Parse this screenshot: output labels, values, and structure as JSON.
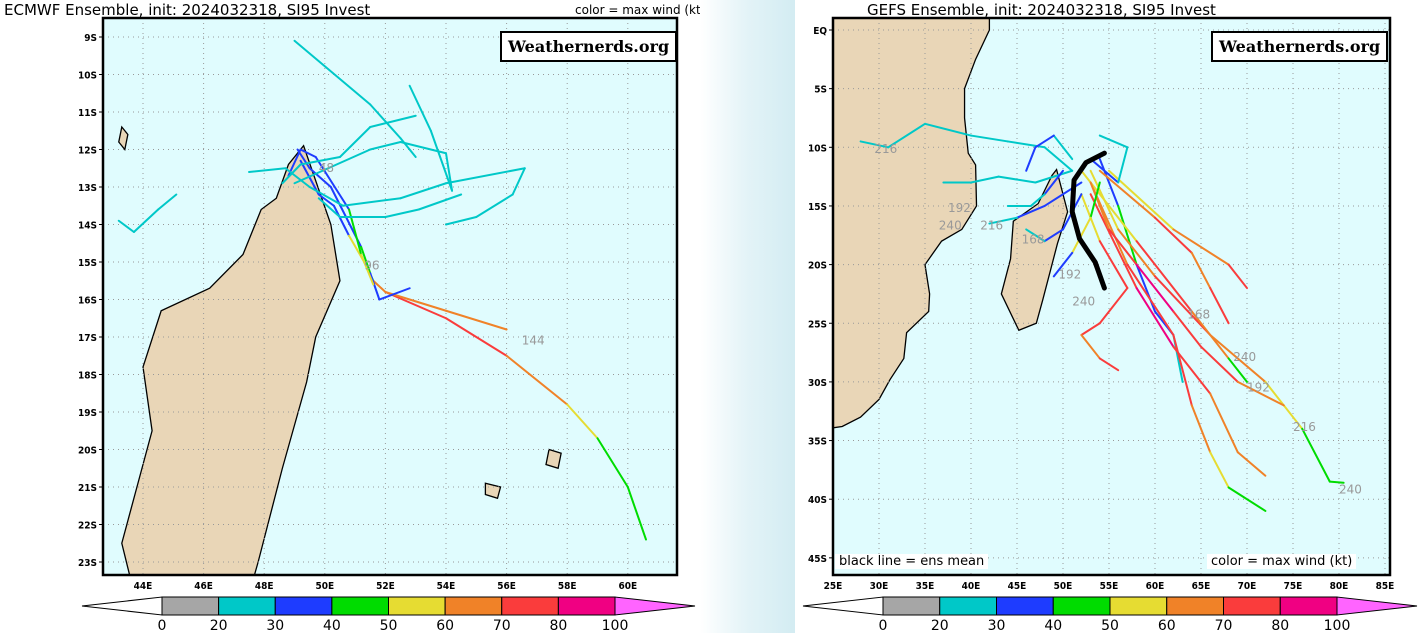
{
  "left": {
    "title": "ECMWF Ensemble, init: 2024032318, SI95 Invest",
    "legend_note": "color = max wind (kt)",
    "watermark": "Weathernerds.org",
    "lat_labels": [
      "9S",
      "10S",
      "11S",
      "12S",
      "13S",
      "14S",
      "15S",
      "16S",
      "17S",
      "18S",
      "19S",
      "20S",
      "21S",
      "22S",
      "23S"
    ],
    "lon_labels": [
      "44E",
      "46E",
      "48E",
      "50E",
      "52E",
      "54E",
      "56E",
      "58E",
      "60E"
    ],
    "track_labels": [
      {
        "text": "144",
        "lon": 56.5,
        "lat": -17.2
      },
      {
        "text": "96",
        "lon": 51.3,
        "lat": -15.2
      },
      {
        "text": "48",
        "lon": 49.8,
        "lat": -12.6
      }
    ],
    "tracks": [
      [
        [
          49.2,
          -12.3,
          30
        ],
        [
          49.8,
          -13.2,
          30
        ],
        [
          50.3,
          -13.5,
          30
        ],
        [
          50.8,
          -14.3,
          30
        ],
        [
          51.3,
          -15.0,
          50
        ],
        [
          51.6,
          -15.5,
          40
        ],
        [
          52,
          -15.8,
          60
        ],
        [
          54,
          -16.5,
          70
        ],
        [
          56,
          -17.5,
          70
        ],
        [
          58,
          -18.8,
          60
        ],
        [
          59,
          -19.7,
          50
        ],
        [
          60,
          -21.0,
          40
        ],
        [
          60.6,
          -22.4,
          40
        ]
      ],
      [
        [
          52,
          -15.8,
          60
        ],
        [
          54,
          -16.3,
          60
        ],
        [
          56,
          -16.8,
          60
        ]
      ],
      [
        [
          49.1,
          -12.0,
          30
        ],
        [
          49.5,
          -12.5,
          30
        ],
        [
          50.2,
          -13,
          30
        ],
        [
          51.2,
          -14.6,
          30
        ],
        [
          51.5,
          -15.3,
          40
        ],
        [
          51.8,
          -16.0,
          30
        ],
        [
          52.8,
          -15.7,
          30
        ]
      ],
      [
        [
          48.8,
          -12.7,
          30
        ],
        [
          49.2,
          -12.0,
          30
        ],
        [
          49.7,
          -12.2,
          30
        ],
        [
          50.8,
          -13.6,
          30
        ],
        [
          51.2,
          -14.8,
          40
        ],
        [
          51.6,
          -15.6,
          50
        ]
      ],
      [
        [
          49,
          -9.1,
          20
        ],
        [
          51.5,
          -10.8,
          20
        ],
        [
          52.5,
          -11.7,
          20
        ],
        [
          53,
          -12.2,
          20
        ]
      ],
      [
        [
          47.5,
          -12.6,
          20
        ],
        [
          48.7,
          -12.5,
          20
        ],
        [
          49.5,
          -13.0,
          20
        ],
        [
          50.6,
          -13.5,
          20
        ],
        [
          52.5,
          -13.3,
          20
        ],
        [
          54,
          -12.9,
          20
        ],
        [
          56.6,
          -12.5,
          20
        ],
        [
          56.2,
          -13.2,
          20
        ],
        [
          55.0,
          -13.8,
          20
        ],
        [
          54,
          -14.0,
          20
        ]
      ],
      [
        [
          49.0,
          -12.9,
          20
        ],
        [
          51.5,
          -12.0,
          20
        ],
        [
          52.5,
          -11.8,
          20
        ],
        [
          54,
          -12.1,
          20
        ],
        [
          54.2,
          -13.1,
          20
        ],
        [
          53.5,
          -11.5,
          20
        ],
        [
          52.8,
          -10.3,
          20
        ]
      ],
      [
        [
          48.6,
          -12.9,
          20
        ],
        [
          49.2,
          -12.4,
          20
        ],
        [
          50.5,
          -12.2,
          20
        ],
        [
          51.5,
          -11.4,
          20
        ],
        [
          53.0,
          -11.1,
          20
        ]
      ],
      [
        [
          43.2,
          -13.9,
          20
        ],
        [
          43.7,
          -14.2,
          20
        ],
        [
          44.5,
          -13.6,
          20
        ],
        [
          45.1,
          -13.2,
          20
        ]
      ],
      [
        [
          49.8,
          -13.3,
          20
        ],
        [
          50.5,
          -13.8,
          20
        ],
        [
          52,
          -13.8,
          20
        ],
        [
          53.1,
          -13.6,
          20
        ],
        [
          54.5,
          -13.2,
          20
        ]
      ]
    ]
  },
  "right": {
    "title": "GEFS Ensemble, init: 2024032318, SI95 Invest",
    "watermark": "Weathernerds.org",
    "note_left": "black line = ens mean",
    "note_right": "color = max wind (kt)",
    "lat_labels": [
      "EQ",
      "5S",
      "10S",
      "15S",
      "20S",
      "25S",
      "30S",
      "35S",
      "40S",
      "45S"
    ],
    "lon_labels": [
      "25E",
      "30E",
      "35E",
      "40E",
      "45E",
      "50E",
      "55E",
      "60E",
      "65E",
      "70E",
      "75E",
      "80E",
      "85E"
    ],
    "track_labels": [
      {
        "text": "216",
        "lon": 29.5,
        "lat": -10.5
      },
      {
        "text": "192",
        "lon": 37.5,
        "lat": -15.5
      },
      {
        "text": "240",
        "lon": 36.5,
        "lat": -17
      },
      {
        "text": "216",
        "lon": 41,
        "lat": -17
      },
      {
        "text": "168",
        "lon": 45.5,
        "lat": -18.2
      },
      {
        "text": "192",
        "lon": 49.5,
        "lat": -21.2
      },
      {
        "text": "240",
        "lon": 51,
        "lat": -23.5
      },
      {
        "text": "168",
        "lon": 63.5,
        "lat": -24.6
      },
      {
        "text": "240",
        "lon": 68.5,
        "lat": -28.2
      },
      {
        "text": "192",
        "lon": 70,
        "lat": -30.8
      },
      {
        "text": "216",
        "lon": 75,
        "lat": -34.2
      },
      {
        "text": "240",
        "lon": 80,
        "lat": -39.5
      }
    ],
    "tracks": [
      [
        [
          54,
          -11,
          20
        ],
        [
          56,
          -15,
          30
        ],
        [
          58,
          -20,
          40
        ],
        [
          60,
          -24,
          30
        ],
        [
          62,
          -26,
          30
        ],
        [
          63,
          -30,
          20
        ]
      ],
      [
        [
          53,
          -12,
          30
        ],
        [
          56,
          -17,
          50
        ],
        [
          60,
          -21,
          60
        ],
        [
          66,
          -26,
          70
        ],
        [
          72,
          -30,
          60
        ],
        [
          76,
          -34,
          50
        ],
        [
          79,
          -38.5,
          40
        ],
        [
          80.5,
          -38.6,
          40
        ]
      ],
      [
        [
          53,
          -13,
          40
        ],
        [
          57,
          -20,
          60
        ],
        [
          62,
          -26,
          70
        ],
        [
          64,
          -32,
          70
        ],
        [
          66,
          -36,
          60
        ],
        [
          68,
          -39,
          50
        ],
        [
          72,
          -41,
          40
        ]
      ],
      [
        [
          52,
          -12,
          30
        ],
        [
          58,
          -18,
          50
        ],
        [
          64,
          -24,
          70
        ],
        [
          68,
          -28,
          60
        ],
        [
          70,
          -30,
          40
        ]
      ],
      [
        [
          54,
          -12,
          30
        ],
        [
          60,
          -16,
          60
        ],
        [
          64,
          -19,
          70
        ],
        [
          66,
          -22,
          60
        ],
        [
          68,
          -25,
          70
        ]
      ],
      [
        [
          52,
          -14,
          30
        ],
        [
          54,
          -18,
          50
        ],
        [
          57,
          -22,
          70
        ],
        [
          54,
          -25,
          70
        ],
        [
          52,
          -26,
          70
        ],
        [
          54,
          -28,
          60
        ],
        [
          56,
          -29,
          70
        ]
      ],
      [
        [
          53,
          -14,
          40
        ],
        [
          58,
          -22,
          70
        ],
        [
          62,
          -27,
          80
        ],
        [
          66,
          -31,
          70
        ],
        [
          69,
          -36,
          60
        ],
        [
          72,
          -38,
          60
        ]
      ],
      [
        [
          55,
          -12,
          30
        ],
        [
          62,
          -17,
          50
        ],
        [
          68,
          -20,
          60
        ],
        [
          70,
          -22,
          70
        ]
      ],
      [
        [
          53,
          -13,
          40
        ],
        [
          55,
          -17,
          60
        ],
        [
          58,
          -20,
          70
        ],
        [
          62,
          -24,
          80
        ],
        [
          65,
          -27,
          70
        ],
        [
          69,
          -30,
          70
        ],
        [
          74,
          -32,
          60
        ]
      ],
      [
        [
          51,
          -12,
          20
        ],
        [
          48,
          -10,
          20
        ],
        [
          44,
          -9.5,
          20
        ],
        [
          40,
          -9,
          20
        ],
        [
          35,
          -8,
          20
        ],
        [
          31,
          -10,
          20
        ],
        [
          28,
          -9.5,
          20
        ]
      ],
      [
        [
          51,
          -12,
          20
        ],
        [
          47,
          -13,
          20
        ],
        [
          43,
          -12.5,
          20
        ],
        [
          40,
          -13,
          20
        ],
        [
          37,
          -13,
          20
        ]
      ],
      [
        [
          52,
          -13,
          30
        ],
        [
          48,
          -15,
          30
        ],
        [
          45,
          -16,
          30
        ],
        [
          42,
          -16.5,
          20
        ]
      ],
      [
        [
          51,
          -11,
          20
        ],
        [
          49,
          -9,
          20
        ],
        [
          47,
          -10,
          30
        ],
        [
          46,
          -12,
          30
        ]
      ],
      [
        [
          52,
          -14,
          40
        ],
        [
          50,
          -17,
          30
        ],
        [
          48,
          -18,
          30
        ],
        [
          46,
          -17,
          20
        ]
      ],
      [
        [
          54,
          -13,
          30
        ],
        [
          53,
          -16,
          40
        ],
        [
          51,
          -19,
          50
        ],
        [
          49,
          -21,
          30
        ]
      ],
      [
        [
          53,
          -11,
          30
        ],
        [
          56,
          -13,
          30
        ],
        [
          57,
          -10,
          20
        ],
        [
          54,
          -9,
          20
        ]
      ],
      [
        [
          50,
          -12,
          20
        ],
        [
          49,
          -13,
          30
        ],
        [
          48,
          -14,
          30
        ],
        [
          46.5,
          -15,
          20
        ],
        [
          44,
          -15,
          20
        ]
      ]
    ],
    "mean_track": [
      [
        54.5,
        -10.5
      ],
      [
        52.5,
        -11.3
      ],
      [
        51.2,
        -12.8
      ],
      [
        51,
        -15.5
      ],
      [
        51.8,
        -17.8
      ],
      [
        53.5,
        -19.8
      ],
      [
        54.5,
        -22
      ]
    ]
  },
  "colorbar": {
    "labels": [
      "0",
      "20",
      "30",
      "40",
      "50",
      "60",
      "70",
      "80",
      "100"
    ],
    "colors": [
      "#ffffff",
      "#a6a6a6",
      "#00c8c8",
      "#1e3cff",
      "#00dc00",
      "#e6dc32",
      "#f08228",
      "#fa3c3c",
      "#f00082",
      "#ff64ff"
    ]
  },
  "colors": {
    "ocean": "#e0fcfe",
    "land": "#e9d6b7",
    "mean": "#000000"
  }
}
